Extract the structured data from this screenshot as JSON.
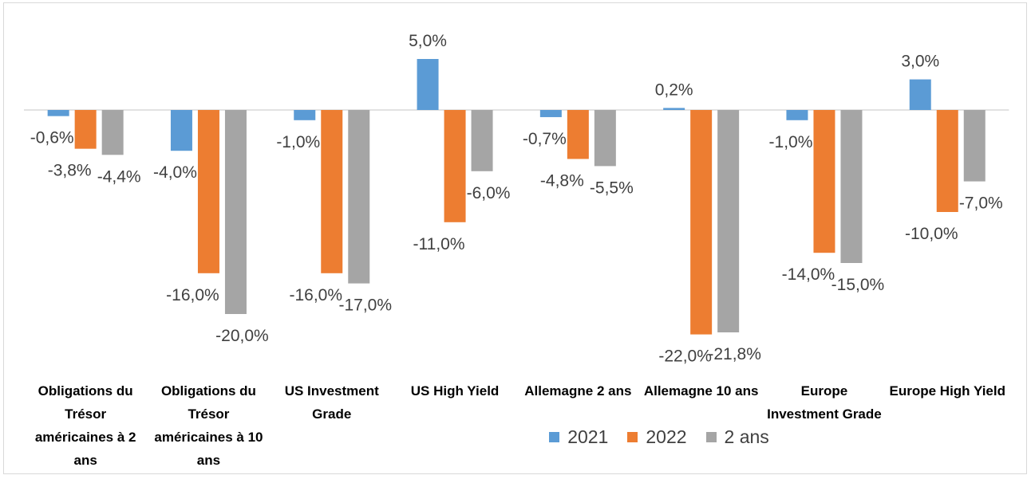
{
  "chart_data": {
    "type": "bar",
    "title": "",
    "xlabel": "",
    "ylabel": "",
    "ylim": [
      -23,
      8
    ],
    "grid": false,
    "legend_position": "bottom",
    "categories": [
      "Obligations du Trésor américaines à 2 ans",
      "Obligations du Trésor américaines à 10 ans",
      "US Investment Grade",
      "US High Yield",
      "Allemagne 2 ans",
      "Allemagne 10 ans",
      "Europe Investment Grade",
      "Europe High Yield"
    ],
    "series": [
      {
        "name": "2021",
        "color": "#5B9BD5",
        "values": [
          -0.6,
          -4.0,
          -1.0,
          5.0,
          -0.7,
          0.2,
          -1.0,
          3.0
        ],
        "labels": [
          "-0,6%",
          "-4,0%",
          "-1,0%",
          "5,0%",
          "-0,7%",
          "0,2%",
          "-1,0%",
          "3,0%"
        ]
      },
      {
        "name": "2022",
        "color": "#ED7D31",
        "values": [
          -3.8,
          -16.0,
          -16.0,
          -11.0,
          -4.8,
          -22.0,
          -14.0,
          -10.0
        ],
        "labels": [
          "-3,8%",
          "-16,0%",
          "-16,0%",
          "-11,0%",
          "-4,8%",
          "-22,0%",
          "-14,0%",
          "-10,0%"
        ]
      },
      {
        "name": "2 ans",
        "color": "#A5A5A5",
        "values": [
          -4.4,
          -20.0,
          -17.0,
          -6.0,
          -5.5,
          -21.8,
          -15.0,
          -7.0
        ],
        "labels": [
          "-4,4%",
          "-20,0%",
          "-17,0%",
          "-6,0%",
          "-5,5%",
          "-21,8%",
          "-15,0%",
          "-7,0%"
        ]
      }
    ]
  }
}
